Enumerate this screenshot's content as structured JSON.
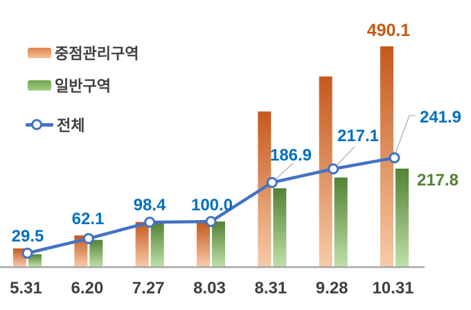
{
  "chart_data": {
    "type": "bar+line combo",
    "categories": [
      "5.31",
      "6.20",
      "7.27",
      "8.03",
      "8.31",
      "9.28",
      "10.31"
    ],
    "series": [
      {
        "name": "중점관리구역",
        "type": "bar",
        "values": [
          40,
          69,
          99,
          100,
          345,
          423,
          490.1
        ],
        "note": "only last value labeled on chart; others estimated from bar heights",
        "color_top": "#c6581c",
        "color_bottom": "#f7cba8"
      },
      {
        "name": "일반구역",
        "type": "bar",
        "values": [
          27,
          59,
          97,
          100,
          174,
          198,
          217.8
        ],
        "note": "only last value labeled on chart; others estimated from bar heights",
        "color_top": "#538135",
        "color_bottom": "#bfdfa8"
      },
      {
        "name": "전체",
        "type": "line",
        "values": [
          29.5,
          62.1,
          98.4,
          100.0,
          186.9,
          217.1,
          241.9
        ],
        "point_labels": [
          "29.5",
          "62.1",
          "98.4",
          "100.0",
          "186.9",
          "217.1",
          "241.9"
        ],
        "color": "#4472c4",
        "marker": "circle-white-fill-blue-ring"
      }
    ],
    "bar_end_labels": [
      {
        "text": "490.1",
        "series": "중점관리구역",
        "category": "10.31",
        "color": "#c55a11"
      },
      {
        "text": "217.8",
        "series": "일반구역",
        "category": "10.31",
        "color": "#538135"
      }
    ],
    "title": "",
    "xlabel": "",
    "ylabel": "",
    "ylim": [
      0,
      510
    ],
    "grid": false,
    "legend_position": "upper-left",
    "axis_line_color": "#a6a6a6",
    "leader_line_color": "#b0b0b0",
    "line_label_color": "#0070c0",
    "xtick_label_color": "#3f3f3f"
  },
  "legend": {
    "items": [
      {
        "label": "중점관리구역",
        "swatch": "orange-bar"
      },
      {
        "label": "일반구역",
        "swatch": "green-bar"
      },
      {
        "label": "전체",
        "swatch": "blue-line-marker"
      }
    ]
  }
}
